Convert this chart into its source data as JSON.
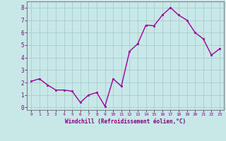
{
  "x": [
    0,
    1,
    2,
    3,
    4,
    5,
    6,
    7,
    8,
    9,
    10,
    11,
    12,
    13,
    14,
    15,
    16,
    17,
    18,
    19,
    20,
    21,
    22,
    23
  ],
  "y": [
    2.1,
    2.3,
    1.8,
    1.4,
    1.4,
    1.3,
    0.4,
    1.0,
    1.2,
    0.1,
    2.3,
    1.7,
    4.5,
    5.1,
    6.6,
    6.55,
    7.4,
    8.0,
    7.4,
    7.0,
    6.0,
    5.5,
    4.2,
    4.7
  ],
  "line_color": "#990099",
  "marker": "s",
  "marker_size": 2,
  "bg_color": "#c8e8e8",
  "grid_color": "#aacccc",
  "xlabel": "Windchill (Refroidissement éolien,°C)",
  "ylabel": "",
  "title": "",
  "xlim": [
    -0.5,
    23.5
  ],
  "ylim": [
    -0.2,
    8.5
  ],
  "xticks": [
    0,
    1,
    2,
    3,
    4,
    5,
    6,
    7,
    8,
    9,
    10,
    11,
    12,
    13,
    14,
    15,
    16,
    17,
    18,
    19,
    20,
    21,
    22,
    23
  ],
  "yticks": [
    0,
    1,
    2,
    3,
    4,
    5,
    6,
    7,
    8
  ],
  "tick_color": "#800080",
  "label_color": "#800080",
  "axes_color": "#800080",
  "spine_color": "#808080"
}
